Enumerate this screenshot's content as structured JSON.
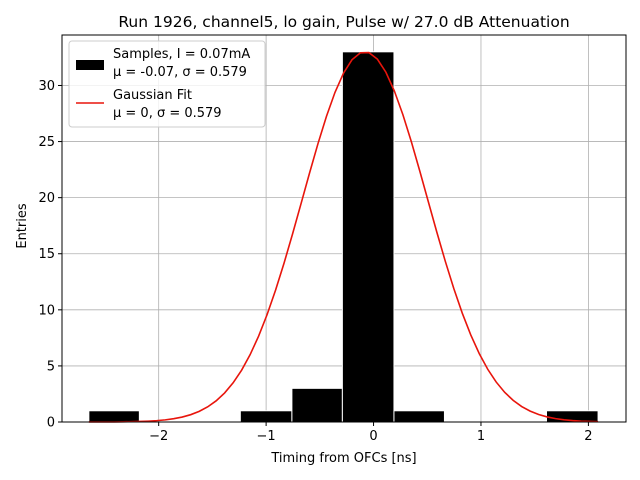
{
  "chart_data": {
    "type": "bar",
    "title": "Run 1926, channel5, lo gain, Pulse w/ 27.0 dB Attenuation",
    "xlabel": "Timing from OFCs [ns]",
    "ylabel": "Entries",
    "xlim": [
      -2.9,
      2.35
    ],
    "ylim": [
      0,
      34.5
    ],
    "xticks": [
      -2,
      -1,
      0,
      1,
      2
    ],
    "xtick_labels": [
      "−2",
      "−1",
      "0",
      "1",
      "2"
    ],
    "yticks": [
      0,
      5,
      10,
      15,
      20,
      25,
      30
    ],
    "ytick_labels": [
      "0",
      "5",
      "10",
      "15",
      "20",
      "25",
      "30"
    ],
    "grid": true,
    "legend_position": "top-left",
    "histogram": {
      "name": "Samples, I = 0.07mA",
      "stats": "μ = -0.07, σ = 0.579",
      "color": "#000000",
      "bins": [
        {
          "x0": -2.65,
          "x1": -2.18,
          "value": 1
        },
        {
          "x0": -2.18,
          "x1": -1.71,
          "value": 0
        },
        {
          "x0": -1.71,
          "x1": -1.24,
          "value": 0
        },
        {
          "x0": -1.24,
          "x1": -0.76,
          "value": 1
        },
        {
          "x0": -0.76,
          "x1": -0.29,
          "value": 3
        },
        {
          "x0": -0.29,
          "x1": 0.19,
          "value": 33
        },
        {
          "x0": 0.19,
          "x1": 0.66,
          "value": 1
        },
        {
          "x0": 0.66,
          "x1": 1.14,
          "value": 0
        },
        {
          "x0": 1.14,
          "x1": 1.61,
          "value": 0
        },
        {
          "x0": 1.61,
          "x1": 2.09,
          "value": 1
        }
      ]
    },
    "fit": {
      "name": "Gaussian Fit",
      "stats": "μ = 0, σ = 0.579",
      "color": "#e8150c",
      "amplitude": 33,
      "mean": -0.08,
      "sigma": 0.579,
      "x_range": [
        -2.65,
        2.09
      ]
    }
  }
}
